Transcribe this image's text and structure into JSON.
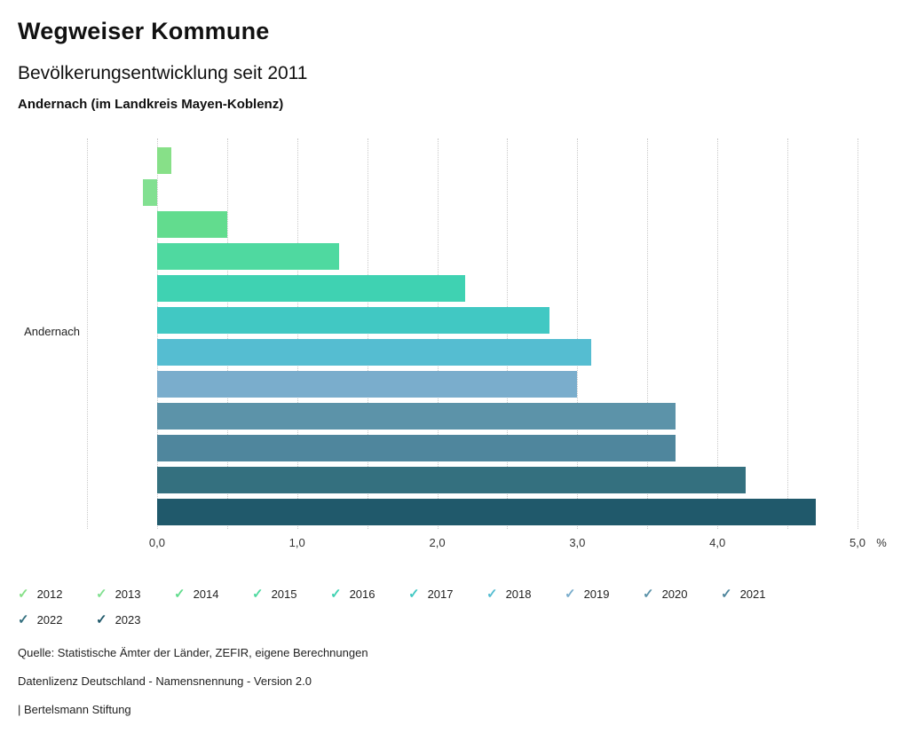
{
  "header": {
    "title": "Wegweiser Kommune",
    "subtitle": "Bevölkerungsentwicklung seit 2011",
    "region_line": "Andernach (im Landkreis Mayen-Koblenz)"
  },
  "chart_data": {
    "type": "bar",
    "orientation": "horizontal",
    "title": "Bevölkerungsentwicklung seit 2011",
    "category_label": "Andernach",
    "unit": "%",
    "xlim": [
      -0.5,
      5.0
    ],
    "grid_step": 0.5,
    "grid_style": "dotted",
    "tick_values": [
      0,
      1,
      2,
      3,
      4,
      5
    ],
    "tick_labels": [
      "0,0",
      "1,0",
      "2,0",
      "3,0",
      "4,0",
      "5,0"
    ],
    "series": [
      {
        "name": "2012",
        "value": 0.1,
        "color": "#87e088"
      },
      {
        "name": "2013",
        "value": -0.1,
        "color": "#82e091"
      },
      {
        "name": "2014",
        "value": 0.5,
        "color": "#62dc8e"
      },
      {
        "name": "2015",
        "value": 1.3,
        "color": "#4fd9a0"
      },
      {
        "name": "2016",
        "value": 2.2,
        "color": "#3fd2b2"
      },
      {
        "name": "2017",
        "value": 2.8,
        "color": "#41c8c3"
      },
      {
        "name": "2018",
        "value": 3.1,
        "color": "#55bdd1"
      },
      {
        "name": "2019",
        "value": 3.0,
        "color": "#7aadcc"
      },
      {
        "name": "2020",
        "value": 3.7,
        "color": "#5c93a9"
      },
      {
        "name": "2021",
        "value": 3.7,
        "color": "#4f869d"
      },
      {
        "name": "2022",
        "value": 4.2,
        "color": "#34707f"
      },
      {
        "name": "2023",
        "value": 4.7,
        "color": "#20596b"
      }
    ],
    "legend_position": "bottom"
  },
  "legend": {
    "check_glyph": "✓"
  },
  "footer": {
    "source": "Quelle: Statistische Ämter der Länder, ZEFIR, eigene Berechnungen",
    "license": "Datenlizenz Deutschland - Namensnennung - Version 2.0",
    "brand": "| Bertelsmann Stiftung"
  }
}
